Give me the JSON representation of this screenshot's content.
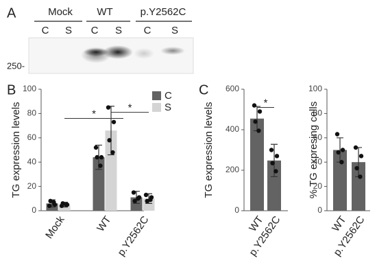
{
  "blot": {
    "panel_label": "A",
    "groups": [
      "Mock",
      "WT",
      "p.Y2562C"
    ],
    "lanes": [
      "C",
      "S",
      "C",
      "S",
      "C",
      "S"
    ],
    "marker": "250-"
  },
  "chart_data": [
    {
      "type": "bar",
      "panel_label": "B",
      "ylabel": "TG expression levels",
      "categories": [
        "Mock",
        "WT",
        "p.Y2562C"
      ],
      "series": [
        {
          "name": "C",
          "color": "#636363",
          "values": [
            6,
            44,
            11
          ],
          "errors": [
            3,
            10,
            5
          ],
          "points": [
            [
              4,
              5,
              8,
              7
            ],
            [
              52,
              44,
              44,
              37
            ],
            [
              15,
              11,
              8,
              10
            ]
          ]
        },
        {
          "name": "S",
          "color": "#d4d4d4",
          "values": [
            5,
            66,
            10
          ],
          "errors": [
            2,
            20,
            4
          ],
          "points": [
            [
              4,
              5,
              6,
              5
            ],
            [
              85,
              73,
              58,
              48
            ],
            [
              13,
              11,
              8,
              9
            ]
          ]
        }
      ],
      "ylim": [
        0,
        100
      ],
      "yticks": [
        0,
        20,
        40,
        60,
        80,
        100
      ],
      "annotations": [
        {
          "text": "*",
          "y": 76
        },
        {
          "text": "*",
          "y": 81
        }
      ]
    },
    {
      "type": "bar",
      "panel_label": "C",
      "ylabel": "TG expression levels",
      "categories": [
        "WT",
        "p.Y2562C"
      ],
      "series": [
        {
          "color": "#636363",
          "values": [
            455,
            248
          ],
          "errors": [
            60,
            80
          ],
          "points": [
            [
              520,
              490,
              440,
              395
            ],
            [
              300,
              270,
              235,
              195
            ]
          ]
        }
      ],
      "ylim": [
        0,
        600
      ],
      "yticks": [
        0,
        200,
        400,
        600
      ],
      "annotations": [
        {
          "text": "*",
          "y": 510
        }
      ]
    },
    {
      "type": "bar",
      "ylabel": "% TG expresing cells",
      "categories": [
        "WT",
        "p.Y2562C"
      ],
      "series": [
        {
          "color": "#636363",
          "values": [
            50,
            40
          ],
          "errors": [
            10,
            12
          ],
          "points": [
            [
              63,
              50,
              48,
              40
            ],
            [
              52,
              45,
              35,
              28
            ]
          ]
        }
      ],
      "ylim": [
        0,
        100
      ],
      "yticks": [
        0,
        20,
        40,
        60,
        80,
        100
      ]
    }
  ]
}
